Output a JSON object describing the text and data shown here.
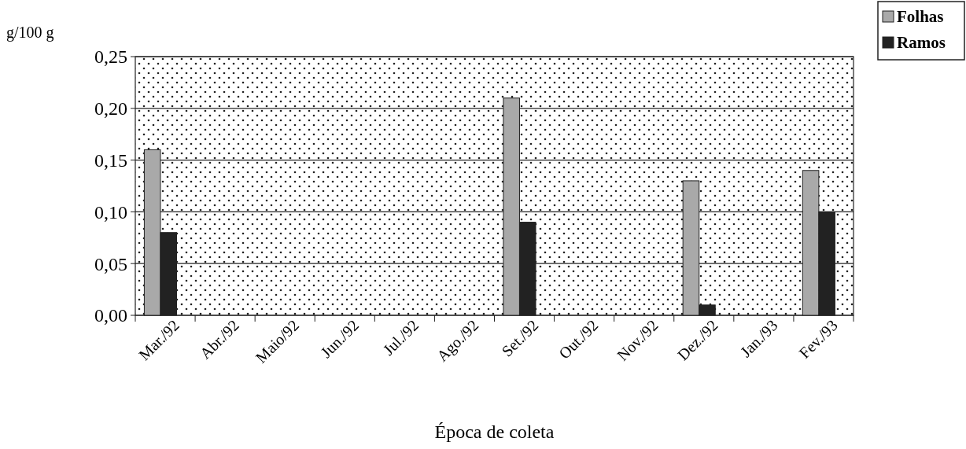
{
  "chart_data": {
    "type": "bar",
    "xlabel": "Época de coleta",
    "ylabel": "g/100 g",
    "categories": [
      "Mar./92",
      "Abr./92",
      "Maio/92",
      "Jun./92",
      "Jul./92",
      "Ago./92",
      "Set./92",
      "Out./92",
      "Nov./92",
      "Dez./92",
      "Jan./93",
      "Fev./93"
    ],
    "series": [
      {
        "name": "Folhas",
        "color": "#a9a9a9",
        "values": [
          0.16,
          null,
          null,
          null,
          null,
          null,
          0.21,
          null,
          null,
          0.13,
          null,
          0.14
        ]
      },
      {
        "name": "Ramos",
        "color": "#222222",
        "values": [
          0.08,
          null,
          null,
          null,
          null,
          null,
          0.09,
          null,
          null,
          0.01,
          null,
          0.1
        ]
      }
    ],
    "ylim": [
      0,
      0.25
    ],
    "yticks": [
      {
        "value": 0,
        "label": "0,00"
      },
      {
        "value": 0.05,
        "label": "0,05"
      },
      {
        "value": 0.1,
        "label": "0,10"
      },
      {
        "value": 0.15,
        "label": "0,15"
      },
      {
        "value": 0.2,
        "label": "0,20"
      },
      {
        "value": 0.25,
        "label": "0,25"
      }
    ],
    "grid": "y",
    "legend": "top right"
  }
}
